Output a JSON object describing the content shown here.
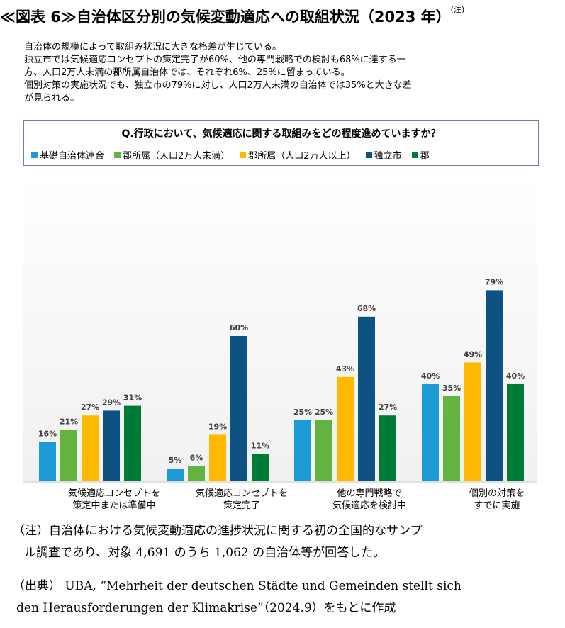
{
  "title": "≪図表 6≫自治体区分別の気候変動適応への取組状況（2023 年）",
  "title_note": "(注)",
  "summary": [
    "自治体の規模によって取組み状況に大きな格差が生じている。",
    "独立市では気候適応コンセプトの策定完了が60%、他の専門戦略での検討も68%に達する一",
    "方、人口2万人未満の郡所属自治体では、それぞれ6%、25%に留まっている。",
    "個別対策の実施状況でも、独立市の79%に対し、人口2万人未満の自治体では35%と大きな差",
    "が見られる。"
  ],
  "question": "Q.行政において、気候適応に関する取組みをどの程度進めていますか？",
  "chart_data": {
    "type": "bar",
    "categories": [
      [
        "気候適応コンセプトを",
        "策定中または準備中"
      ],
      [
        "気候適応コンセプトを",
        "策定完了"
      ],
      [
        "他の専門戦略で",
        "気候適応を検討中"
      ],
      [
        "個別の対策を",
        "すでに実施"
      ]
    ],
    "series": [
      {
        "name": "基礎自治体連合",
        "color": "#1b9ad6",
        "values": [
          16,
          5,
          25,
          40
        ]
      },
      {
        "name": "郡所属（人口2万人未満）",
        "color": "#62b33f",
        "values": [
          21,
          6,
          25,
          35
        ]
      },
      {
        "name": "郡所属（人口2万人以上）",
        "color": "#ffb900",
        "values": [
          27,
          19,
          43,
          49
        ]
      },
      {
        "name": "独立市",
        "color": "#0d5282",
        "values": [
          29,
          60,
          68,
          79
        ]
      },
      {
        "name": "郡",
        "color": "#007a37",
        "values": [
          31,
          11,
          27,
          40
        ]
      }
    ],
    "value_suffix": "%",
    "ylim": [
      0,
      100
    ],
    "grid": false,
    "legend": "top"
  },
  "notes": [
    "（注）自治体における気候変動適応の進捗状況に関する初の全国的なサンプ",
    "ル調査であり、対象 4,691 のうち 1,062 の自治体等が回答した。",
    "（出典） UBA, “Mehrheit der deutschen Städte und Gemeinden stellt sich",
    "den Herausforderungen der Klimakrise”（2024.9）をもとに作成"
  ]
}
